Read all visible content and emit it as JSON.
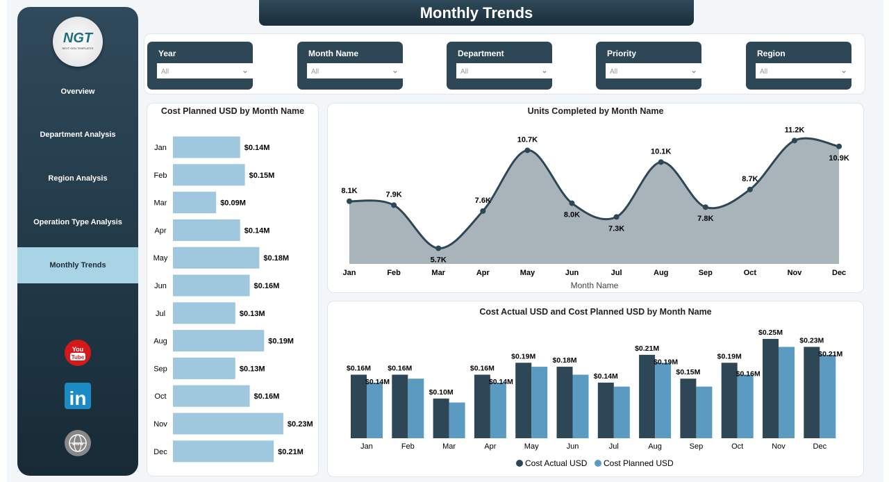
{
  "title": "Monthly Trends",
  "logo": {
    "text": "NGT",
    "subtext": "NEXT GEN TEMPLATES"
  },
  "nav": [
    {
      "label": "Overview"
    },
    {
      "label": "Department Analysis"
    },
    {
      "label": "Region Analysis"
    },
    {
      "label": "Operation Type Analysis"
    },
    {
      "label": "Monthly Trends",
      "active": true
    }
  ],
  "social": [
    "youtube-icon",
    "linkedin-icon",
    "website-globe-icon"
  ],
  "filters": [
    {
      "label": "Year",
      "value": "All"
    },
    {
      "label": "Month Name",
      "value": "All"
    },
    {
      "label": "Department",
      "value": "All"
    },
    {
      "label": "Priority",
      "value": "All"
    },
    {
      "label": "Region",
      "value": "All"
    }
  ],
  "colors": {
    "dark": "#2e4756",
    "light_bar": "#9fc8df",
    "planned": "#5b9bc2",
    "area": "#a9b4ba"
  },
  "chart_data": [
    {
      "type": "bar",
      "orientation": "horizontal",
      "title": "Cost Planned USD by Month Name",
      "categories": [
        "Jan",
        "Feb",
        "Mar",
        "Apr",
        "May",
        "Jun",
        "Jul",
        "Aug",
        "Sep",
        "Oct",
        "Nov",
        "Dec"
      ],
      "values": [
        0.14,
        0.15,
        0.09,
        0.14,
        0.18,
        0.16,
        0.13,
        0.19,
        0.13,
        0.16,
        0.23,
        0.21
      ],
      "labels": [
        "$0.14M",
        "$0.15M",
        "$0.09M",
        "$0.14M",
        "$0.18M",
        "$0.16M",
        "$0.13M",
        "$0.19M",
        "$0.13M",
        "$0.16M",
        "$0.23M",
        "$0.21M"
      ],
      "unit": "USD millions"
    },
    {
      "type": "area",
      "title": "Units Completed by Month Name",
      "xlabel": "Month Name",
      "categories": [
        "Jan",
        "Feb",
        "Mar",
        "Apr",
        "May",
        "Jun",
        "Jul",
        "Aug",
        "Sep",
        "Oct",
        "Nov",
        "Dec"
      ],
      "values": [
        8.1,
        7.9,
        5.7,
        7.6,
        10.7,
        8.0,
        7.3,
        10.1,
        7.8,
        8.7,
        11.2,
        10.9
      ],
      "labels": [
        "8.1K",
        "7.9K",
        "5.7K",
        "7.6K",
        "10.7K",
        "8.0K",
        "7.3K",
        "10.1K",
        "7.8K",
        "8.7K",
        "11.2K",
        "10.9K"
      ],
      "unit": "thousands"
    },
    {
      "type": "bar",
      "title": "Cost Actual USD and Cost Planned USD by Month Name",
      "categories": [
        "Jan",
        "Feb",
        "Mar",
        "Apr",
        "May",
        "Jun",
        "Jul",
        "Aug",
        "Sep",
        "Oct",
        "Nov",
        "Dec"
      ],
      "series": [
        {
          "name": "Cost Actual USD",
          "values": [
            0.16,
            0.16,
            0.1,
            0.16,
            0.19,
            0.18,
            0.14,
            0.21,
            0.15,
            0.19,
            0.25,
            0.23
          ],
          "labels": [
            "$0.16M",
            "$0.16M",
            "$0.10M",
            "$0.16M",
            "$0.19M",
            "$0.18M",
            "$0.14M",
            "$0.21M",
            "$0.15M",
            "$0.19M",
            "$0.25M",
            "$0.23M"
          ]
        },
        {
          "name": "Cost Planned USD",
          "values": [
            0.14,
            0.15,
            0.09,
            0.14,
            0.18,
            0.16,
            0.13,
            0.19,
            0.13,
            0.16,
            0.23,
            0.21
          ],
          "labels": [
            "$0.14M",
            null,
            null,
            "$0.14M",
            null,
            null,
            null,
            "$0.19M",
            null,
            "$0.16M",
            null,
            "$0.21M"
          ]
        }
      ],
      "legend": "bottom",
      "unit": "USD millions"
    }
  ]
}
